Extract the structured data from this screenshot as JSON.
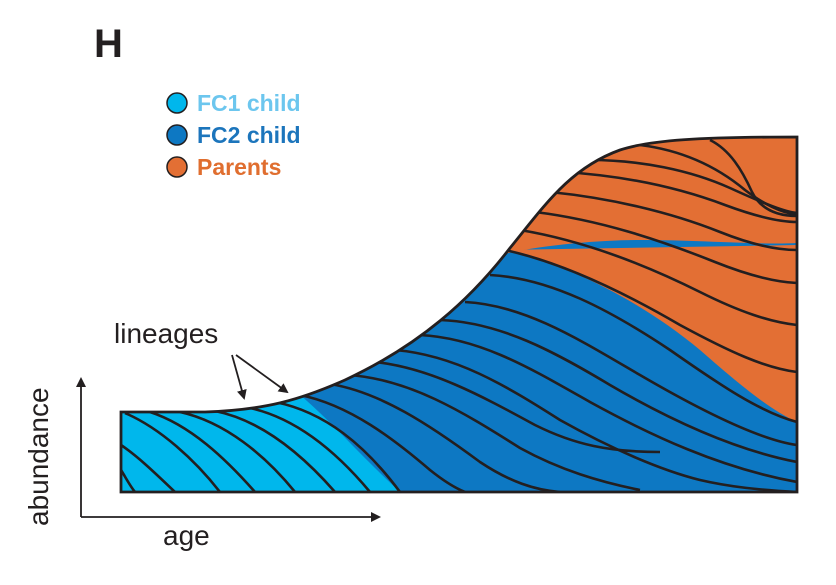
{
  "panel_label": "H",
  "legend": [
    {
      "label": "FC1 child",
      "color": "#00b7ec",
      "text_color": "#6cc6ee"
    },
    {
      "label": "FC2 child",
      "color": "#0d78c3",
      "text_color": "#1c75bc"
    },
    {
      "label": "Parents",
      "color": "#e36f34",
      "text_color": "#e06e2f"
    }
  ],
  "annotation": "lineages",
  "axes": {
    "x_label": "age",
    "y_label": "abundance"
  },
  "colors": {
    "outline": "#231f20",
    "fc1": "#00b7ec",
    "fc2": "#0d78c3",
    "parents": "#e36f34"
  }
}
